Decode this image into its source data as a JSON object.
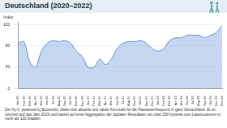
{
  "chart_data": {
    "type": "line",
    "title": "Deutschland (2020–2022)",
    "ylabel": "Index",
    "note": "Der hy-X, powered by Ecoworks, bildet eine aktuelle und valide Kennzahl für die Passantenfrequenz in ganz Deutschland. Er ist normiert auf das Jahr 2019 und basiert auf einer Aggregation der digitalen Messdaten von über 250 hystreet.com Laserscannern in mehr als 100 Städten.",
    "categories": [
      "Jan 20",
      "Feb 20",
      "Mär 20",
      "Apr 20",
      "Mai 20",
      "Jun 20",
      "Jul 20",
      "Aug 20",
      "Sep 20",
      "Okt 20",
      "Nov 20",
      "Dez 20",
      "Jan 21",
      "Feb 21",
      "Mär 21",
      "Apr 21",
      "Mai 21",
      "Jun 21",
      "Jul 21",
      "Aug 21",
      "Sep 21",
      "Okt 21",
      "Nov 21",
      "Dez 21",
      "Jan 22",
      "Feb 22",
      "Mär 22",
      "Apr 22",
      "Mai 22",
      "Jun 22",
      "Jul 22",
      "Aug 22",
      "Sep 22",
      "Okt 22",
      "Nov 22",
      "Dez 22"
    ],
    "values": [
      85,
      88,
      50,
      40,
      70,
      85,
      90,
      88,
      90,
      85,
      70,
      60,
      40,
      40,
      55,
      45,
      55,
      75,
      85,
      88,
      88,
      90,
      85,
      75,
      70,
      75,
      90,
      95,
      95,
      100,
      100,
      100,
      95,
      100,
      105,
      118
    ],
    "color": "#5b8fd6",
    "ylim": [
      0,
      125
    ],
    "yticks": [
      0,
      40,
      80,
      120
    ],
    "grid": true
  }
}
